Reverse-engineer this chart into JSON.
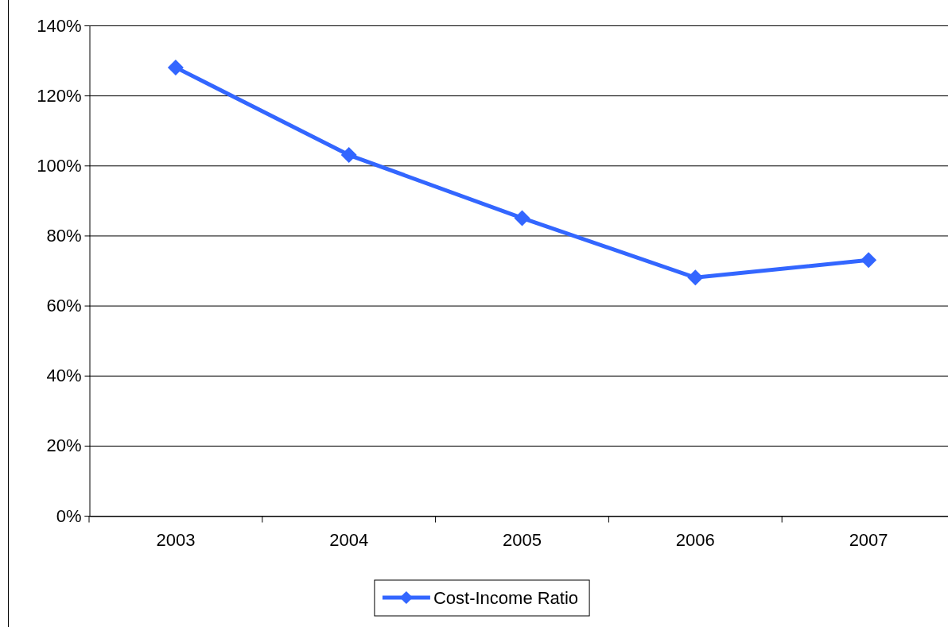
{
  "chart_data": {
    "type": "line",
    "categories": [
      "2003",
      "2004",
      "2005",
      "2006",
      "2007"
    ],
    "series": [
      {
        "name": "Cost-Income Ratio",
        "color": "#3366ff",
        "values": [
          128,
          103,
          85,
          68,
          73
        ]
      }
    ],
    "ylim": [
      0,
      140
    ],
    "yticks": [
      {
        "value": 0,
        "label": "0%"
      },
      {
        "value": 20,
        "label": "20%"
      },
      {
        "value": 40,
        "label": "40%"
      },
      {
        "value": 60,
        "label": "60%"
      },
      {
        "value": 80,
        "label": "80%"
      },
      {
        "value": 100,
        "label": "100%"
      },
      {
        "value": 120,
        "label": "120%"
      },
      {
        "value": 140,
        "label": "140%"
      }
    ],
    "grid": "y",
    "legend": "bottom",
    "marker": "diamond",
    "line_style": "solid"
  }
}
